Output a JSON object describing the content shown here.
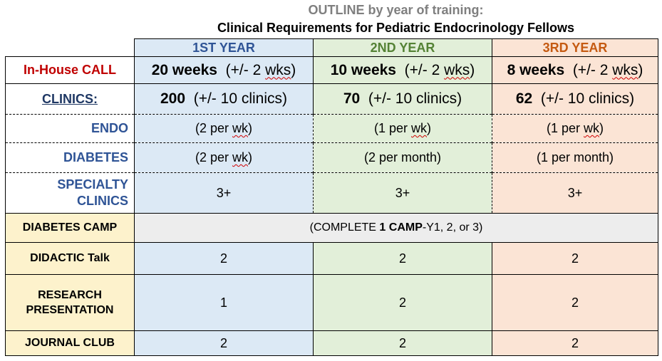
{
  "title": {
    "outline_word": "OUTLINE",
    "outline_rest": " by year of training:",
    "subtitle": "Clinical Requirements for Pediatric Endocrinology Fellows"
  },
  "colors": {
    "year1": "#2f5496",
    "year2": "#548235",
    "year3": "#c55a11",
    "year1_bg": "#dce9f5",
    "year2_bg": "#e2efd9",
    "year3_bg": "#fbe4d5",
    "label_bg": "#fdf2cc",
    "camp_bg": "#ededed",
    "call_label": "#c00000"
  },
  "headers": [
    "1ST YEAR",
    "2ND YEAR",
    "3RD YEAR"
  ],
  "call": {
    "label": "In-House CALL",
    "y1": {
      "num": "20 weeks",
      "paren": "(+/- 2 ",
      "unit": "wks",
      "close": ")"
    },
    "y2": {
      "num": "10 weeks",
      "paren": "(+/- 2 ",
      "unit": "wks",
      "close": ")"
    },
    "y3": {
      "num": "8 weeks",
      "paren": "(+/- 2 ",
      "unit": "wks",
      "close": ")"
    }
  },
  "clinics": {
    "label": "CLINICS:",
    "y1": {
      "num": "200",
      "rest": "(+/- 10 clinics)"
    },
    "y2": {
      "num": "70",
      "rest": "(+/- 10 clinics)"
    },
    "y3": {
      "num": "62",
      "rest": "(+/- 10 clinics)"
    }
  },
  "endo": {
    "label": "ENDO",
    "y1": {
      "pre": "(2 per ",
      "wk": "wk",
      "post": ")"
    },
    "y2": {
      "pre": "(1 per ",
      "wk": "wk",
      "post": ")"
    },
    "y3": {
      "pre": "(1 per ",
      "wk": "wk",
      "post": ")"
    }
  },
  "diabetes": {
    "label": "DIABETES",
    "y1": {
      "pre": "(2 per ",
      "wk": "wk",
      "post": ")"
    },
    "y2": "(2 per month)",
    "y3": "(1 per month)"
  },
  "specialty": {
    "label_line1": "SPECIALTY",
    "label_line2": "CLINICS",
    "y1": "3+",
    "y2": "3+",
    "y3": "3+"
  },
  "camp": {
    "label": "DIABETES CAMP",
    "pre": "(COMPLETE ",
    "bold": "1 CAMP",
    "post": "-Y1, 2, or 3)"
  },
  "didactic": {
    "label": "DIDACTIC Talk",
    "y1": "2",
    "y2": "2",
    "y3": "2"
  },
  "research": {
    "label_line1": "RESEARCH",
    "label_line2": "PRESENTATION",
    "y1": "1",
    "y2": "2",
    "y3": "2"
  },
  "journal": {
    "label": "JOURNAL CLUB",
    "y1": "2",
    "y2": "2",
    "y3": "2"
  }
}
